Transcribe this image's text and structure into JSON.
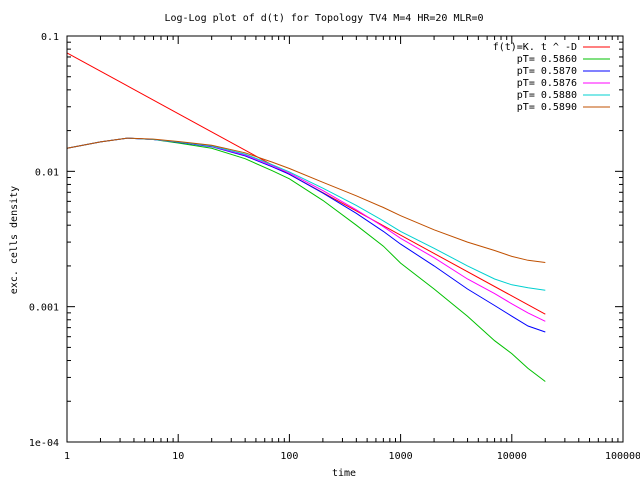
{
  "chart_data": {
    "type": "line",
    "title": "Log-Log plot of d(t) for Topology TV4 M=4 HR=20 MLR=0",
    "xlabel": "time",
    "ylabel": "exc. cells density",
    "xscale": "log",
    "yscale": "log",
    "xlim": [
      1,
      100000
    ],
    "ylim": [
      0.0001,
      0.1
    ],
    "grid": false,
    "legend_position": "top-right",
    "x_ticks": [
      {
        "value": 1,
        "label": "1"
      },
      {
        "value": 10,
        "label": "10"
      },
      {
        "value": 100,
        "label": "100"
      },
      {
        "value": 1000,
        "label": "1000"
      },
      {
        "value": 10000,
        "label": "10000"
      },
      {
        "value": 100000,
        "label": "100000"
      }
    ],
    "y_ticks": [
      {
        "value": 0.0001,
        "label": "1e-04"
      },
      {
        "value": 0.001,
        "label": "0.001"
      },
      {
        "value": 0.01,
        "label": "0.01"
      },
      {
        "value": 0.1,
        "label": "0.1"
      }
    ],
    "series": [
      {
        "name": "f(t)=K. t ^ -D",
        "color": "#ff0000",
        "x": [
          1,
          20000
        ],
        "y": [
          0.075,
          0.00088
        ]
      },
      {
        "name": "pT= 0.5860",
        "color": "#00c000",
        "x": [
          1,
          2,
          3.5,
          6,
          10,
          20,
          40,
          70,
          100,
          200,
          400,
          700,
          1000,
          2000,
          4000,
          7000,
          10000,
          14000,
          20000
        ],
        "y": [
          0.0148,
          0.0165,
          0.0176,
          0.0172,
          0.0162,
          0.0148,
          0.0124,
          0.0101,
          0.0088,
          0.0061,
          0.004,
          0.0028,
          0.0021,
          0.00135,
          0.00085,
          0.00056,
          0.00045,
          0.00035,
          0.00028
        ]
      },
      {
        "name": "pT= 0.5870",
        "color": "#0000ff",
        "x": [
          1,
          2,
          3.5,
          6,
          10,
          20,
          40,
          70,
          100,
          200,
          400,
          700,
          1000,
          2000,
          4000,
          7000,
          10000,
          14000,
          20000
        ],
        "y": [
          0.0148,
          0.0165,
          0.0176,
          0.0172,
          0.0164,
          0.0152,
          0.013,
          0.0108,
          0.0095,
          0.0069,
          0.0049,
          0.0036,
          0.0029,
          0.002,
          0.00135,
          0.00102,
          0.00085,
          0.00072,
          0.00065
        ]
      },
      {
        "name": "pT= 0.5876",
        "color": "#ff00ff",
        "x": [
          1,
          2,
          3.5,
          6,
          10,
          20,
          40,
          70,
          100,
          200,
          400,
          700,
          1000,
          2000,
          4000,
          7000,
          10000,
          14000,
          20000
        ],
        "y": [
          0.0148,
          0.0165,
          0.0176,
          0.0172,
          0.0165,
          0.0153,
          0.0132,
          0.011,
          0.0097,
          0.0072,
          0.0052,
          0.0039,
          0.0032,
          0.0023,
          0.0016,
          0.00125,
          0.00105,
          0.0009,
          0.00078
        ]
      },
      {
        "name": "pT= 0.5880",
        "color": "#00d0d0",
        "x": [
          1,
          2,
          3.5,
          6,
          10,
          20,
          40,
          70,
          100,
          200,
          400,
          700,
          1000,
          2000,
          4000,
          7000,
          10000,
          14000,
          20000
        ],
        "y": [
          0.0148,
          0.0165,
          0.0176,
          0.0172,
          0.0165,
          0.0154,
          0.0134,
          0.0112,
          0.0099,
          0.0075,
          0.0056,
          0.0043,
          0.0036,
          0.0027,
          0.002,
          0.0016,
          0.00145,
          0.00138,
          0.00132
        ]
      },
      {
        "name": "pT= 0.5890",
        "color": "#c05000",
        "x": [
          1,
          2,
          3.5,
          6,
          10,
          20,
          40,
          70,
          100,
          200,
          400,
          700,
          1000,
          2000,
          4000,
          7000,
          10000,
          14000,
          20000
        ],
        "y": [
          0.0148,
          0.0165,
          0.0176,
          0.0173,
          0.0166,
          0.0156,
          0.0137,
          0.0117,
          0.0105,
          0.0083,
          0.0066,
          0.0054,
          0.0047,
          0.0037,
          0.003,
          0.0026,
          0.00235,
          0.0022,
          0.00212
        ]
      }
    ]
  }
}
